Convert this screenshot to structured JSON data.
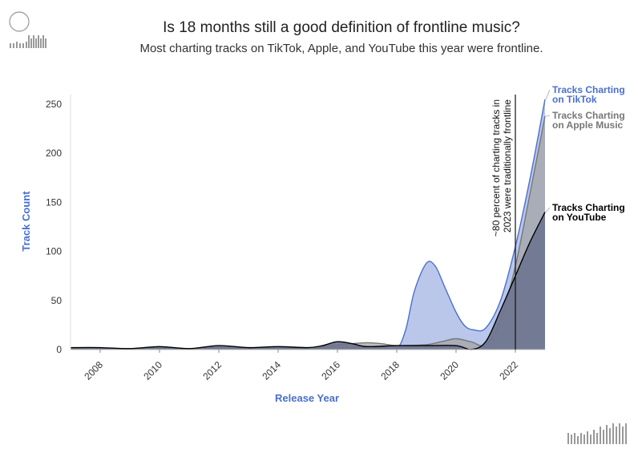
{
  "header": {
    "title": "Is 18 months still a good definition of frontline music?",
    "subtitle": "Most charting tracks on TikTok, Apple, and YouTube this year were frontline."
  },
  "colors": {
    "tiktok_fill": "#aebde8",
    "tiktok_line": "#4a6fd1",
    "apple_fill": "#a3a3a3",
    "apple_line": "#777777",
    "youtube_fill": "#6f7590",
    "youtube_line": "#000000",
    "axis_label": "#4a6fd1"
  },
  "chart_data": {
    "type": "area",
    "title": "Is 18 months still a good definition of frontline music?",
    "subtitle": "Most charting tracks on TikTok, Apple, and YouTube this year were frontline.",
    "xlabel": "Release Year",
    "ylabel": "Track Count",
    "xlim": [
      2007,
      2023
    ],
    "ylim": [
      0,
      260
    ],
    "xticks": [
      2008,
      2010,
      2012,
      2014,
      2016,
      2018,
      2020,
      2022
    ],
    "yticks": [
      0,
      50,
      100,
      150,
      200,
      250
    ],
    "grid": false,
    "series": [
      {
        "name": "Tracks Charting on TikTok",
        "x": [
          2007,
          2008,
          2009,
          2010,
          2011,
          2012,
          2013,
          2014,
          2015,
          2016,
          2016.5,
          2017,
          2017.5,
          2018,
          2018.3,
          2018.6,
          2019,
          2019.3,
          2019.6,
          2020,
          2020.3,
          2020.6,
          2021,
          2021.5,
          2022,
          2022.5,
          2023
        ],
        "y": [
          1,
          1,
          1,
          1,
          1,
          1,
          1,
          1,
          1,
          1,
          2,
          1,
          1,
          1,
          20,
          60,
          88,
          85,
          65,
          38,
          24,
          20,
          22,
          50,
          105,
          175,
          255
        ]
      },
      {
        "name": "Tracks Charting on Apple Music",
        "x": [
          2007,
          2008,
          2009,
          2010,
          2011,
          2012,
          2013,
          2014,
          2015,
          2016,
          2016.5,
          2017,
          2017.5,
          2018,
          2019,
          2019.5,
          2020,
          2020.5,
          2021,
          2021.5,
          2022,
          2022.5,
          2023
        ],
        "y": [
          1,
          1,
          1,
          2,
          1,
          2,
          1,
          2,
          1,
          5,
          6,
          7,
          6,
          4,
          5,
          8,
          11,
          8,
          5,
          30,
          85,
          160,
          238
        ]
      },
      {
        "name": "Tracks Charting on YouTube",
        "x": [
          2007,
          2008,
          2009,
          2010,
          2011,
          2012,
          2013,
          2014,
          2015,
          2015.5,
          2016,
          2016.5,
          2017,
          2018,
          2019,
          2020,
          2020.5,
          2021,
          2021.5,
          2022,
          2022.5,
          2023
        ],
        "y": [
          2,
          2,
          1,
          3,
          1,
          4,
          2,
          3,
          2,
          4,
          8,
          6,
          3,
          4,
          4,
          4,
          0,
          8,
          40,
          75,
          110,
          140
        ]
      }
    ],
    "annotations": [
      {
        "x": 2022,
        "text_lines": [
          "~80 percent of charting tracks in",
          "2023 were traditionally frontline"
        ]
      }
    ],
    "legend": "direct labels at right end of each series"
  }
}
